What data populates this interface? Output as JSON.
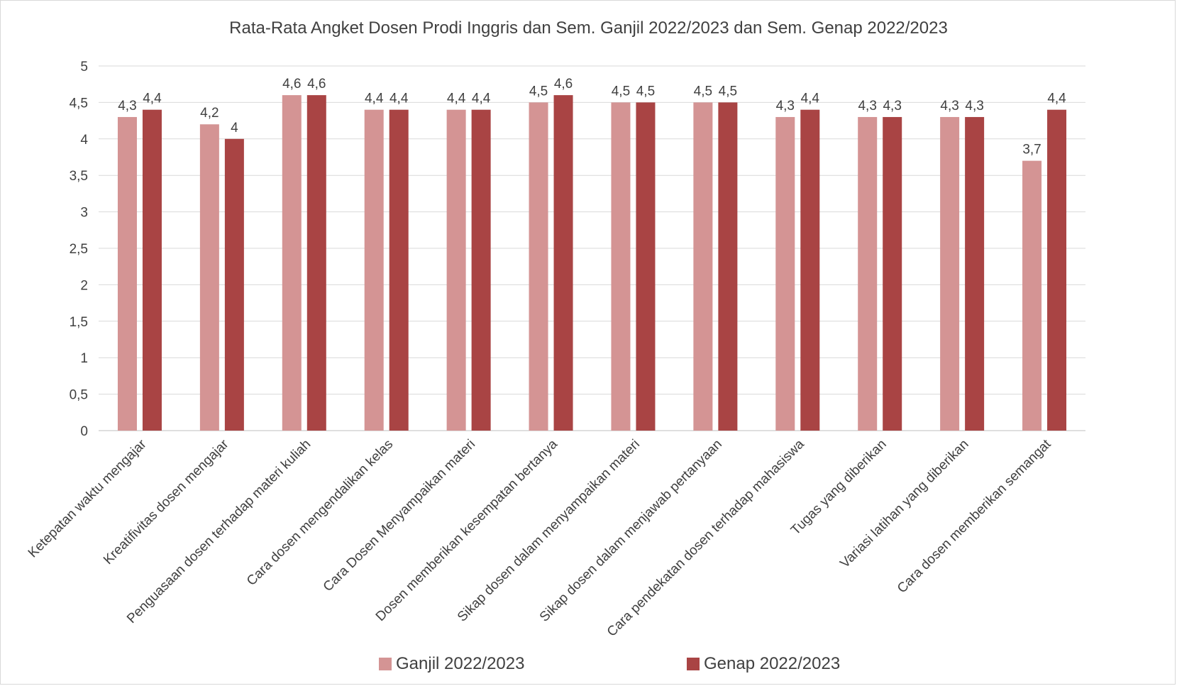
{
  "chart_data": {
    "type": "bar",
    "title": "Rata-Rata Angket Dosen Prodi Inggris dan Sem. Ganjil 2022/2023 dan Sem. Genap 2022/2023",
    "xlabel": "",
    "ylabel": "",
    "ylim": [
      0,
      5
    ],
    "yticks": [
      "0",
      "0,5",
      "1",
      "1,5",
      "2",
      "2,5",
      "3",
      "3,5",
      "4",
      "4,5",
      "5"
    ],
    "grid": true,
    "legend_position": "bottom",
    "categories": [
      "Ketepatan waktu mengajar",
      "Kreatifivitas dosen mengajar",
      "Penguasaan dosen terhadap materi kuliah",
      "Cara dosen mengendalikan kelas",
      "Cara Dosen Menyampaikan materi",
      "Dosen memberikan kesempatan bertanya",
      "Sikap dosen dalam menyampaikan materi",
      "Sikap dosen dalam menjawab pertanyaan",
      "Cara pendekatan dosen terhadap mahasiswa",
      "Tugas yang diberikan",
      "Variasi latihan yang diberikan",
      "Cara dosen memberikan semangat"
    ],
    "series": [
      {
        "name": "Ganjil 2022/2023",
        "color": "#d49494",
        "values": [
          4.3,
          4.2,
          4.6,
          4.4,
          4.4,
          4.5,
          4.5,
          4.5,
          4.3,
          4.3,
          4.3,
          3.7
        ],
        "labels": [
          "4,3",
          "4,2",
          "4,6",
          "4,4",
          "4,4",
          "4,5",
          "4,5",
          "4,5",
          "4,3",
          "4,3",
          "4,3",
          "3,7"
        ]
      },
      {
        "name": "Genap 2022/2023",
        "color": "#a94444",
        "values": [
          4.4,
          4.0,
          4.6,
          4.4,
          4.4,
          4.6,
          4.5,
          4.5,
          4.4,
          4.3,
          4.3,
          4.4
        ],
        "labels": [
          "4,4",
          "4",
          "4,6",
          "4,4",
          "4,4",
          "4,6",
          "4,5",
          "4,5",
          "4,4",
          "4,3",
          "4,3",
          "4,4"
        ]
      }
    ]
  }
}
